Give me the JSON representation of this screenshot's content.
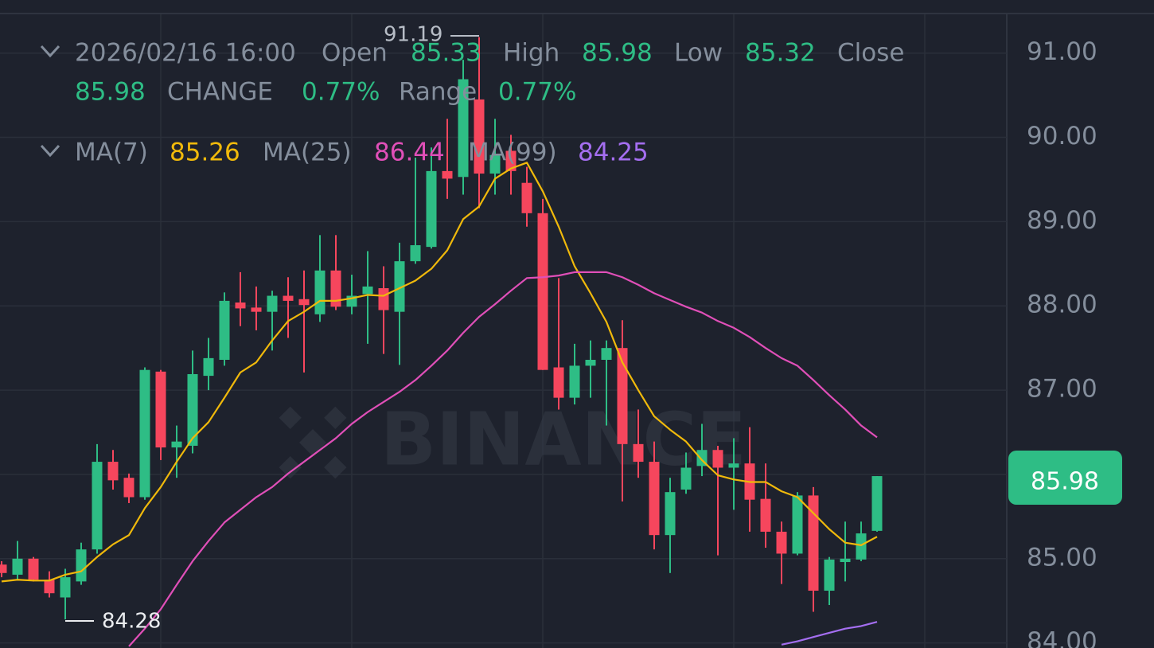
{
  "chart_data": {
    "type": "candlestick",
    "time": "2026/02/16 16:00",
    "labels": {
      "open": "Open",
      "high": "High",
      "low": "Low",
      "close": "Close",
      "change": "CHANGE",
      "range": "Range"
    },
    "change": {
      "value": 0.77,
      "label": "0.77%"
    },
    "range": {
      "value": 0.77,
      "label": "0.77%"
    },
    "watermark": "BINANCE",
    "up_color": "#2ebd85",
    "down_color": "#f6465d",
    "grid": true,
    "ylim": [
      83.94,
      91.46
    ],
    "yticks": [
      {
        "value": 84,
        "label": "84.00"
      },
      {
        "value": 85,
        "label": "85.00"
      },
      {
        "value": 86,
        "label": "86.00"
      },
      {
        "value": 87,
        "label": "87.00"
      },
      {
        "value": 88,
        "label": "88.00"
      },
      {
        "value": 89,
        "label": "89.00"
      },
      {
        "value": 90,
        "label": "90.00"
      },
      {
        "value": 91,
        "label": "91.00"
      }
    ],
    "open": [
      84.93,
      84.81,
      85.0,
      84.75,
      84.54,
      84.73,
      85.11,
      86.15,
      85.96,
      85.73,
      87.22,
      86.32,
      86.34,
      87.17,
      87.36,
      88.04,
      87.98,
      87.93,
      88.12,
      88.08,
      87.9,
      88.42,
      87.99,
      88.14,
      88.21,
      87.93,
      88.53,
      88.7,
      89.6,
      89.53,
      90.45,
      89.57,
      89.84,
      89.46,
      89.1,
      87.27,
      86.91,
      87.29,
      87.36,
      87.5,
      86.36,
      86.15,
      85.28,
      85.82,
      86.1,
      86.29,
      86.08,
      86.13,
      85.71,
      85.32,
      85.06,
      85.75,
      84.62,
      84.96,
      84.99,
      85.33
    ],
    "high": [
      84.97,
      85.21,
      85.02,
      84.85,
      84.88,
      85.19,
      86.36,
      86.29,
      86.01,
      87.27,
      87.24,
      86.58,
      87.47,
      87.62,
      88.16,
      88.4,
      88.23,
      88.18,
      88.34,
      88.42,
      88.84,
      88.84,
      88.37,
      88.65,
      88.47,
      88.75,
      89.76,
      89.88,
      90.22,
      90.92,
      91.19,
      90.22,
      90.03,
      89.65,
      89.27,
      88.33,
      87.55,
      87.59,
      87.59,
      87.83,
      86.77,
      86.39,
      85.96,
      86.26,
      86.6,
      86.34,
      86.43,
      86.56,
      86.13,
      85.44,
      85.79,
      85.85,
      85.02,
      85.44,
      85.44,
      85.98
    ],
    "low": [
      84.78,
      84.75,
      84.73,
      84.54,
      84.28,
      84.69,
      85.06,
      85.82,
      85.66,
      85.7,
      86.17,
      85.96,
      86.25,
      87.0,
      87.29,
      87.76,
      87.71,
      87.47,
      87.62,
      87.21,
      87.81,
      87.95,
      87.9,
      87.55,
      87.43,
      87.3,
      88.5,
      88.68,
      89.27,
      89.32,
      89.16,
      89.32,
      89.32,
      88.94,
      87.24,
      86.77,
      86.83,
      86.91,
      86.58,
      85.68,
      85.96,
      85.11,
      84.83,
      85.77,
      85.98,
      85.04,
      85.58,
      85.32,
      85.13,
      84.7,
      85.04,
      84.37,
      84.45,
      84.73,
      84.97,
      85.32
    ],
    "close": [
      84.83,
      85.0,
      84.75,
      84.59,
      84.78,
      85.11,
      86.15,
      85.93,
      85.73,
      87.24,
      86.32,
      86.39,
      87.19,
      87.38,
      88.06,
      87.97,
      87.93,
      88.12,
      88.06,
      88.01,
      88.42,
      87.99,
      88.12,
      88.23,
      87.95,
      88.53,
      88.72,
      89.6,
      89.51,
      90.69,
      89.57,
      89.79,
      89.6,
      89.1,
      87.24,
      86.91,
      87.29,
      87.36,
      87.5,
      86.36,
      86.15,
      85.28,
      85.79,
      86.08,
      86.29,
      86.08,
      86.13,
      85.7,
      85.32,
      85.06,
      85.75,
      84.62,
      84.99,
      85.0,
      85.3,
      85.98
    ],
    "series": [
      {
        "name": "MA(7)",
        "color": "#f0b90b",
        "values": [
          84.73,
          84.75,
          84.74,
          84.74,
          84.81,
          84.85,
          85.02,
          85.17,
          85.28,
          85.6,
          85.85,
          86.15,
          86.43,
          86.62,
          86.91,
          87.21,
          87.33,
          87.59,
          87.82,
          87.93,
          88.06,
          88.06,
          88.09,
          88.13,
          88.12,
          88.21,
          88.3,
          88.44,
          88.66,
          89.03,
          89.18,
          89.51,
          89.63,
          89.7,
          89.36,
          88.94,
          88.47,
          88.15,
          87.81,
          87.33,
          87.0,
          86.69,
          86.53,
          86.39,
          86.17,
          85.99,
          85.94,
          85.91,
          85.91,
          85.8,
          85.73,
          85.54,
          85.35,
          85.19,
          85.16,
          85.26
        ]
      },
      {
        "name": "MA(25)",
        "color": "#e04fb8",
        "values": [
          null,
          null,
          null,
          null,
          null,
          null,
          null,
          null,
          83.96,
          84.17,
          84.4,
          84.69,
          84.97,
          85.21,
          85.43,
          85.58,
          85.73,
          85.85,
          86.01,
          86.15,
          86.29,
          86.43,
          86.6,
          86.74,
          86.86,
          86.98,
          87.12,
          87.29,
          87.47,
          87.68,
          87.87,
          88.02,
          88.18,
          88.33,
          88.34,
          88.36,
          88.4,
          88.4,
          88.4,
          88.34,
          88.25,
          88.15,
          88.07,
          87.99,
          87.92,
          87.82,
          87.74,
          87.63,
          87.5,
          87.38,
          87.29,
          87.12,
          86.94,
          86.77,
          86.58,
          86.44
        ]
      },
      {
        "name": "MA(99)",
        "color": "#a46ef0",
        "values": [
          null,
          null,
          null,
          null,
          null,
          null,
          null,
          null,
          null,
          null,
          null,
          null,
          null,
          null,
          null,
          null,
          null,
          null,
          null,
          null,
          null,
          null,
          null,
          null,
          null,
          null,
          null,
          null,
          null,
          null,
          null,
          null,
          null,
          null,
          null,
          null,
          null,
          null,
          null,
          null,
          null,
          null,
          null,
          null,
          null,
          null,
          null,
          null,
          null,
          83.98,
          84.02,
          84.07,
          84.12,
          84.17,
          84.2,
          84.25
        ]
      }
    ]
  }
}
